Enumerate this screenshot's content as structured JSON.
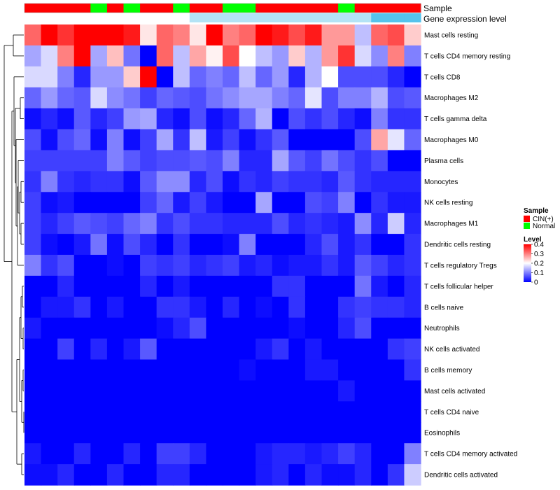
{
  "chart_data": {
    "type": "heatmap",
    "title": "",
    "annotation_labels": {
      "sample": "Sample",
      "expression": "Gene expression level"
    },
    "sample_groups": [
      "CIN",
      "CIN",
      "CIN",
      "CIN",
      "Normal",
      "CIN",
      "Normal",
      "CIN",
      "CIN",
      "Normal",
      "CIN",
      "CIN",
      "Normal",
      "Normal",
      "CIN",
      "CIN",
      "CIN",
      "CIN",
      "CIN",
      "Normal",
      "CIN",
      "CIN",
      "CIN",
      "CIN"
    ],
    "expression_level_values": [
      0,
      0,
      0,
      0,
      0,
      0,
      0,
      0,
      0,
      0,
      0.2,
      0.2,
      0.2,
      0.2,
      0.2,
      0.2,
      0.2,
      0.2,
      0.2,
      0.2,
      0.2,
      0.5,
      0.5,
      0.5
    ],
    "rows": [
      "Mast cells resting",
      "T cells CD4 memory resting",
      "T cells CD8",
      "Macrophages M2",
      "T cells gamma delta",
      "Macrophages M0",
      "Plasma cells",
      "Monocytes",
      "NK cells resting",
      "Macrophages M1",
      "Dendritic cells resting",
      "T cells regulatory  Tregs",
      "T cells follicular helper",
      "B cells naive",
      "Neutrophils",
      "NK cells activated",
      "B cells memory",
      "Mast cells activated",
      "T cells CD4 naive",
      "Eosinophils",
      "T cells CD4 memory activated",
      "Dendritic cells activated"
    ],
    "values": [
      [
        0.32,
        0.4,
        0.36,
        0.42,
        0.4,
        0.4,
        0.38,
        0.22,
        0.32,
        0.3,
        0.22,
        0.42,
        0.3,
        0.32,
        0.4,
        0.38,
        0.34,
        0.38,
        0.28,
        0.28,
        0.15,
        0.32,
        0.34,
        0.24
      ],
      [
        0.13,
        0.17,
        0.3,
        0.4,
        0.13,
        0.25,
        0.09,
        0.0,
        0.32,
        0.15,
        0.27,
        0.21,
        0.34,
        0.2,
        0.15,
        0.12,
        0.24,
        0.14,
        0.28,
        0.36,
        0.17,
        0.11,
        0.3,
        0.1
      ],
      [
        0.17,
        0.17,
        0.1,
        0.03,
        0.12,
        0.12,
        0.24,
        0.4,
        0.0,
        0.15,
        0.08,
        0.1,
        0.08,
        0.15,
        0.08,
        0.12,
        0.03,
        0.14,
        0.2,
        0.06,
        0.06,
        0.06,
        0.03,
        0.0
      ],
      [
        0.08,
        0.12,
        0.08,
        0.07,
        0.17,
        0.11,
        0.09,
        0.05,
        0.08,
        0.07,
        0.06,
        0.09,
        0.11,
        0.13,
        0.13,
        0.1,
        0.08,
        0.18,
        0.06,
        0.1,
        0.1,
        0.14,
        0.06,
        0.07
      ],
      [
        0.01,
        0.03,
        0.01,
        0.07,
        0.03,
        0.05,
        0.12,
        0.13,
        0.03,
        0.01,
        0.06,
        0.01,
        0.03,
        0.08,
        0.14,
        0.0,
        0.06,
        0.04,
        0.06,
        0.03,
        0.01,
        0.1,
        0.04,
        0.04
      ],
      [
        0.06,
        0.01,
        0.06,
        0.08,
        0.01,
        0.1,
        0.01,
        0.05,
        0.13,
        0.04,
        0.15,
        0.02,
        0.05,
        0.01,
        0.04,
        0.07,
        0.0,
        0.0,
        0.0,
        0.0,
        0.06,
        0.27,
        0.18,
        0.08
      ],
      [
        0.05,
        0.05,
        0.05,
        0.05,
        0.05,
        0.1,
        0.07,
        0.05,
        0.06,
        0.06,
        0.07,
        0.06,
        0.1,
        0.03,
        0.03,
        0.13,
        0.07,
        0.05,
        0.09,
        0.06,
        0.04,
        0.06,
        0.0,
        0.0
      ],
      [
        0.04,
        0.1,
        0.04,
        0.03,
        0.04,
        0.04,
        0.01,
        0.07,
        0.11,
        0.11,
        0.03,
        0.06,
        0.01,
        0.04,
        0.03,
        0.05,
        0.04,
        0.04,
        0.03,
        0.07,
        0.04,
        0.03,
        0.03,
        0.03
      ],
      [
        0.05,
        0.01,
        0.02,
        0.0,
        0.0,
        0.0,
        0.0,
        0.05,
        0.08,
        0.02,
        0.05,
        0.02,
        0.0,
        0.0,
        0.13,
        0.0,
        0.0,
        0.06,
        0.05,
        0.1,
        0.0,
        0.04,
        0.02,
        0.02
      ],
      [
        0.05,
        0.03,
        0.05,
        0.07,
        0.06,
        0.05,
        0.08,
        0.1,
        0.04,
        0.06,
        0.04,
        0.04,
        0.03,
        0.03,
        0.03,
        0.06,
        0.03,
        0.04,
        0.03,
        0.02,
        0.11,
        0.03,
        0.16,
        0.03
      ],
      [
        0.05,
        0.01,
        0.0,
        0.02,
        0.09,
        0.01,
        0.06,
        0.03,
        0.0,
        0.04,
        0.0,
        0.0,
        0.01,
        0.1,
        0.0,
        0.0,
        0.0,
        0.03,
        0.06,
        0.02,
        0.04,
        0.0,
        0.0,
        0.04
      ],
      [
        0.1,
        0.04,
        0.06,
        0.0,
        0.0,
        0.01,
        0.0,
        0.05,
        0.04,
        0.05,
        0.03,
        0.04,
        0.05,
        0.02,
        0.03,
        0.01,
        0.02,
        0.02,
        0.04,
        0.02,
        0.07,
        0.05,
        0.03,
        0.04
      ],
      [
        0.0,
        0.0,
        0.03,
        0.0,
        0.0,
        0.0,
        0.0,
        0.03,
        0.0,
        0.02,
        0.0,
        0.0,
        0.0,
        0.0,
        0.0,
        0.04,
        0.04,
        0.0,
        0.0,
        0.0,
        0.09,
        0.02,
        0.0,
        0.03
      ],
      [
        0.0,
        0.02,
        0.02,
        0.04,
        0.0,
        0.02,
        0.0,
        0.0,
        0.04,
        0.04,
        0.02,
        0.0,
        0.03,
        0.0,
        0.01,
        0.0,
        0.04,
        0.0,
        0.0,
        0.04,
        0.05,
        0.04,
        0.04,
        0.03
      ],
      [
        0.02,
        0.0,
        0.0,
        0.0,
        0.0,
        0.0,
        0.0,
        0.0,
        0.01,
        0.03,
        0.06,
        0.0,
        0.0,
        0.0,
        0.0,
        0.0,
        0.01,
        0.0,
        0.0,
        0.03,
        0.06,
        0.0,
        0.0,
        0.0
      ],
      [
        0.0,
        0.0,
        0.05,
        0.0,
        0.03,
        0.0,
        0.02,
        0.07,
        0.0,
        0.0,
        0.0,
        0.0,
        0.0,
        0.0,
        0.02,
        0.04,
        0.0,
        0.02,
        0.0,
        0.0,
        0.0,
        0.0,
        0.04,
        0.05
      ],
      [
        0.0,
        0.0,
        0.0,
        0.0,
        0.0,
        0.0,
        0.0,
        0.0,
        0.0,
        0.0,
        0.0,
        0.0,
        0.0,
        0.01,
        0.0,
        0.0,
        0.0,
        0.02,
        0.02,
        0.0,
        0.0,
        0.0,
        0.0,
        0.04
      ],
      [
        0.0,
        0.0,
        0.0,
        0.0,
        0.0,
        0.0,
        0.0,
        0.0,
        0.0,
        0.0,
        0.0,
        0.0,
        0.0,
        0.0,
        0.0,
        0.0,
        0.0,
        0.0,
        0.0,
        0.02,
        0.0,
        0.0,
        0.0,
        0.0
      ],
      [
        0.0,
        0.0,
        0.0,
        0.0,
        0.0,
        0.0,
        0.0,
        0.0,
        0.0,
        0.0,
        0.0,
        0.0,
        0.0,
        0.0,
        0.0,
        0.0,
        0.0,
        0.0,
        0.0,
        0.0,
        0.0,
        0.0,
        0.0,
        0.0
      ],
      [
        0.0,
        0.0,
        0.0,
        0.0,
        0.0,
        0.0,
        0.0,
        0.0,
        0.0,
        0.0,
        0.0,
        0.0,
        0.0,
        0.0,
        0.0,
        0.0,
        0.0,
        0.0,
        0.0,
        0.0,
        0.0,
        0.0,
        0.0,
        0.0
      ],
      [
        0.02,
        0.0,
        0.0,
        0.03,
        0.0,
        0.0,
        0.03,
        0.0,
        0.05,
        0.05,
        0.03,
        0.0,
        0.0,
        0.0,
        0.02,
        0.03,
        0.03,
        0.02,
        0.03,
        0.05,
        0.03,
        0.0,
        0.0,
        0.1
      ],
      [
        0.01,
        0.01,
        0.03,
        0.0,
        0.0,
        0.03,
        0.0,
        0.0,
        0.03,
        0.03,
        0.0,
        0.0,
        0.0,
        0.0,
        0.02,
        0.03,
        0.0,
        0.03,
        0.01,
        0.01,
        0.03,
        0.0,
        0.04,
        0.16
      ]
    ],
    "color_scale": {
      "min": 0,
      "mid": 0.2,
      "max": 0.4,
      "low": "#0000ff",
      "midcolor": "#ffffff",
      "high": "#ff0000"
    },
    "legend": {
      "sample_title": "Sample",
      "sample_entries": [
        {
          "label": "CIN(+)",
          "color": "#ff0000"
        },
        {
          "label": "Normal",
          "color": "#00ff00"
        }
      ],
      "level_title": "Level",
      "level_ticks": [
        "0.4",
        "0.3",
        "0.2",
        "0.1",
        "0"
      ],
      "placement": "right"
    },
    "group_colors": {
      "CIN": "#ff0000",
      "Normal": "#00ff00"
    },
    "expression_colors": [
      "#ffffff",
      "#b3e3f5",
      "#55c3ec"
    ]
  }
}
